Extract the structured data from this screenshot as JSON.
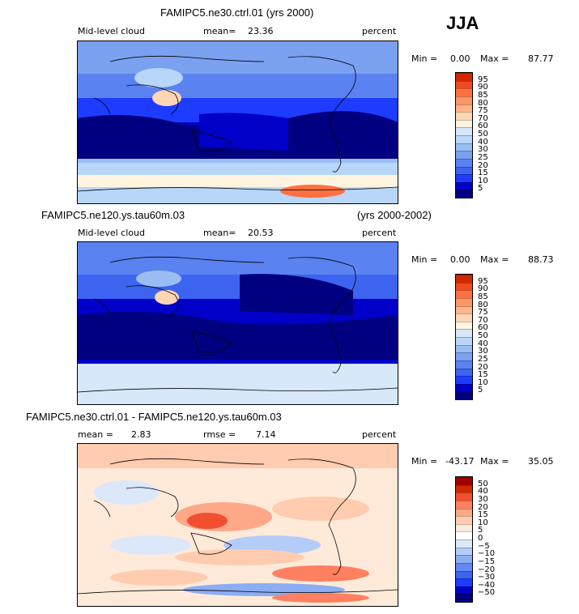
{
  "season": "JJA",
  "colors": {
    "abs_scale": [
      "#000080",
      "#0000c8",
      "#1e3cff",
      "#3c64f0",
      "#5a82f0",
      "#7aa0f0",
      "#9abef4",
      "#b8d6f8",
      "#d6e8fa",
      "#fff4e0",
      "#ffd6b4",
      "#ffb48c",
      "#ff9464",
      "#ff7040",
      "#f04820",
      "#d22800",
      "#a00000",
      "#800000"
    ],
    "diff_scale": [
      "#000080",
      "#0000c8",
      "#1e3cff",
      "#3c64f0",
      "#6488f0",
      "#8cacf4",
      "#b4ccf8",
      "#dce8fa",
      "#ffffff",
      "#ffeada",
      "#ffccb0",
      "#ffa888",
      "#ff8060",
      "#f05030",
      "#d02800",
      "#a00000",
      "#800000"
    ]
  },
  "chart_data": [
    {
      "type": "heatmap",
      "title": "FAMIPC5.ne30.ctrl.01 (yrs 2000)",
      "variable": "Mid-level cloud",
      "mean_label": "mean=",
      "mean": "23.36",
      "units": "percent",
      "min_label": "Min =",
      "min": "0.00",
      "max_label": "Max =",
      "max": "87.77",
      "levels": [
        "5",
        "10",
        "15",
        "20",
        "25",
        "30",
        "40",
        "50",
        "60",
        "70",
        "75",
        "80",
        "85",
        "90",
        "95"
      ]
    },
    {
      "type": "heatmap",
      "title": "FAMIPC5.ne120.ys.tau60m.03",
      "years": "(yrs 2000-2002)",
      "variable": "Mid-level cloud",
      "mean_label": "mean=",
      "mean": "20.53",
      "units": "percent",
      "min_label": "Min =",
      "min": "0.00",
      "max_label": "Max =",
      "max": "88.73",
      "levels": [
        "5",
        "10",
        "15",
        "20",
        "25",
        "30",
        "40",
        "50",
        "60",
        "70",
        "75",
        "80",
        "85",
        "90",
        "95"
      ]
    },
    {
      "type": "heatmap",
      "title": "FAMIPC5.ne30.ctrl.01 - FAMIPC5.ne120.ys.tau60m.03",
      "mean_label": "mean =",
      "mean": "2.83",
      "rmse_label": "rmse =",
      "rmse": "7.14",
      "units": "percent",
      "min_label": "Min =",
      "min": "-43.17",
      "max_label": "Max =",
      "max": "35.05",
      "levels": [
        "−50",
        "−40",
        "−30",
        "−20",
        "−15",
        "−10",
        "−5",
        "0",
        "5",
        "10",
        "15",
        "20",
        "30",
        "40",
        "50"
      ]
    }
  ]
}
